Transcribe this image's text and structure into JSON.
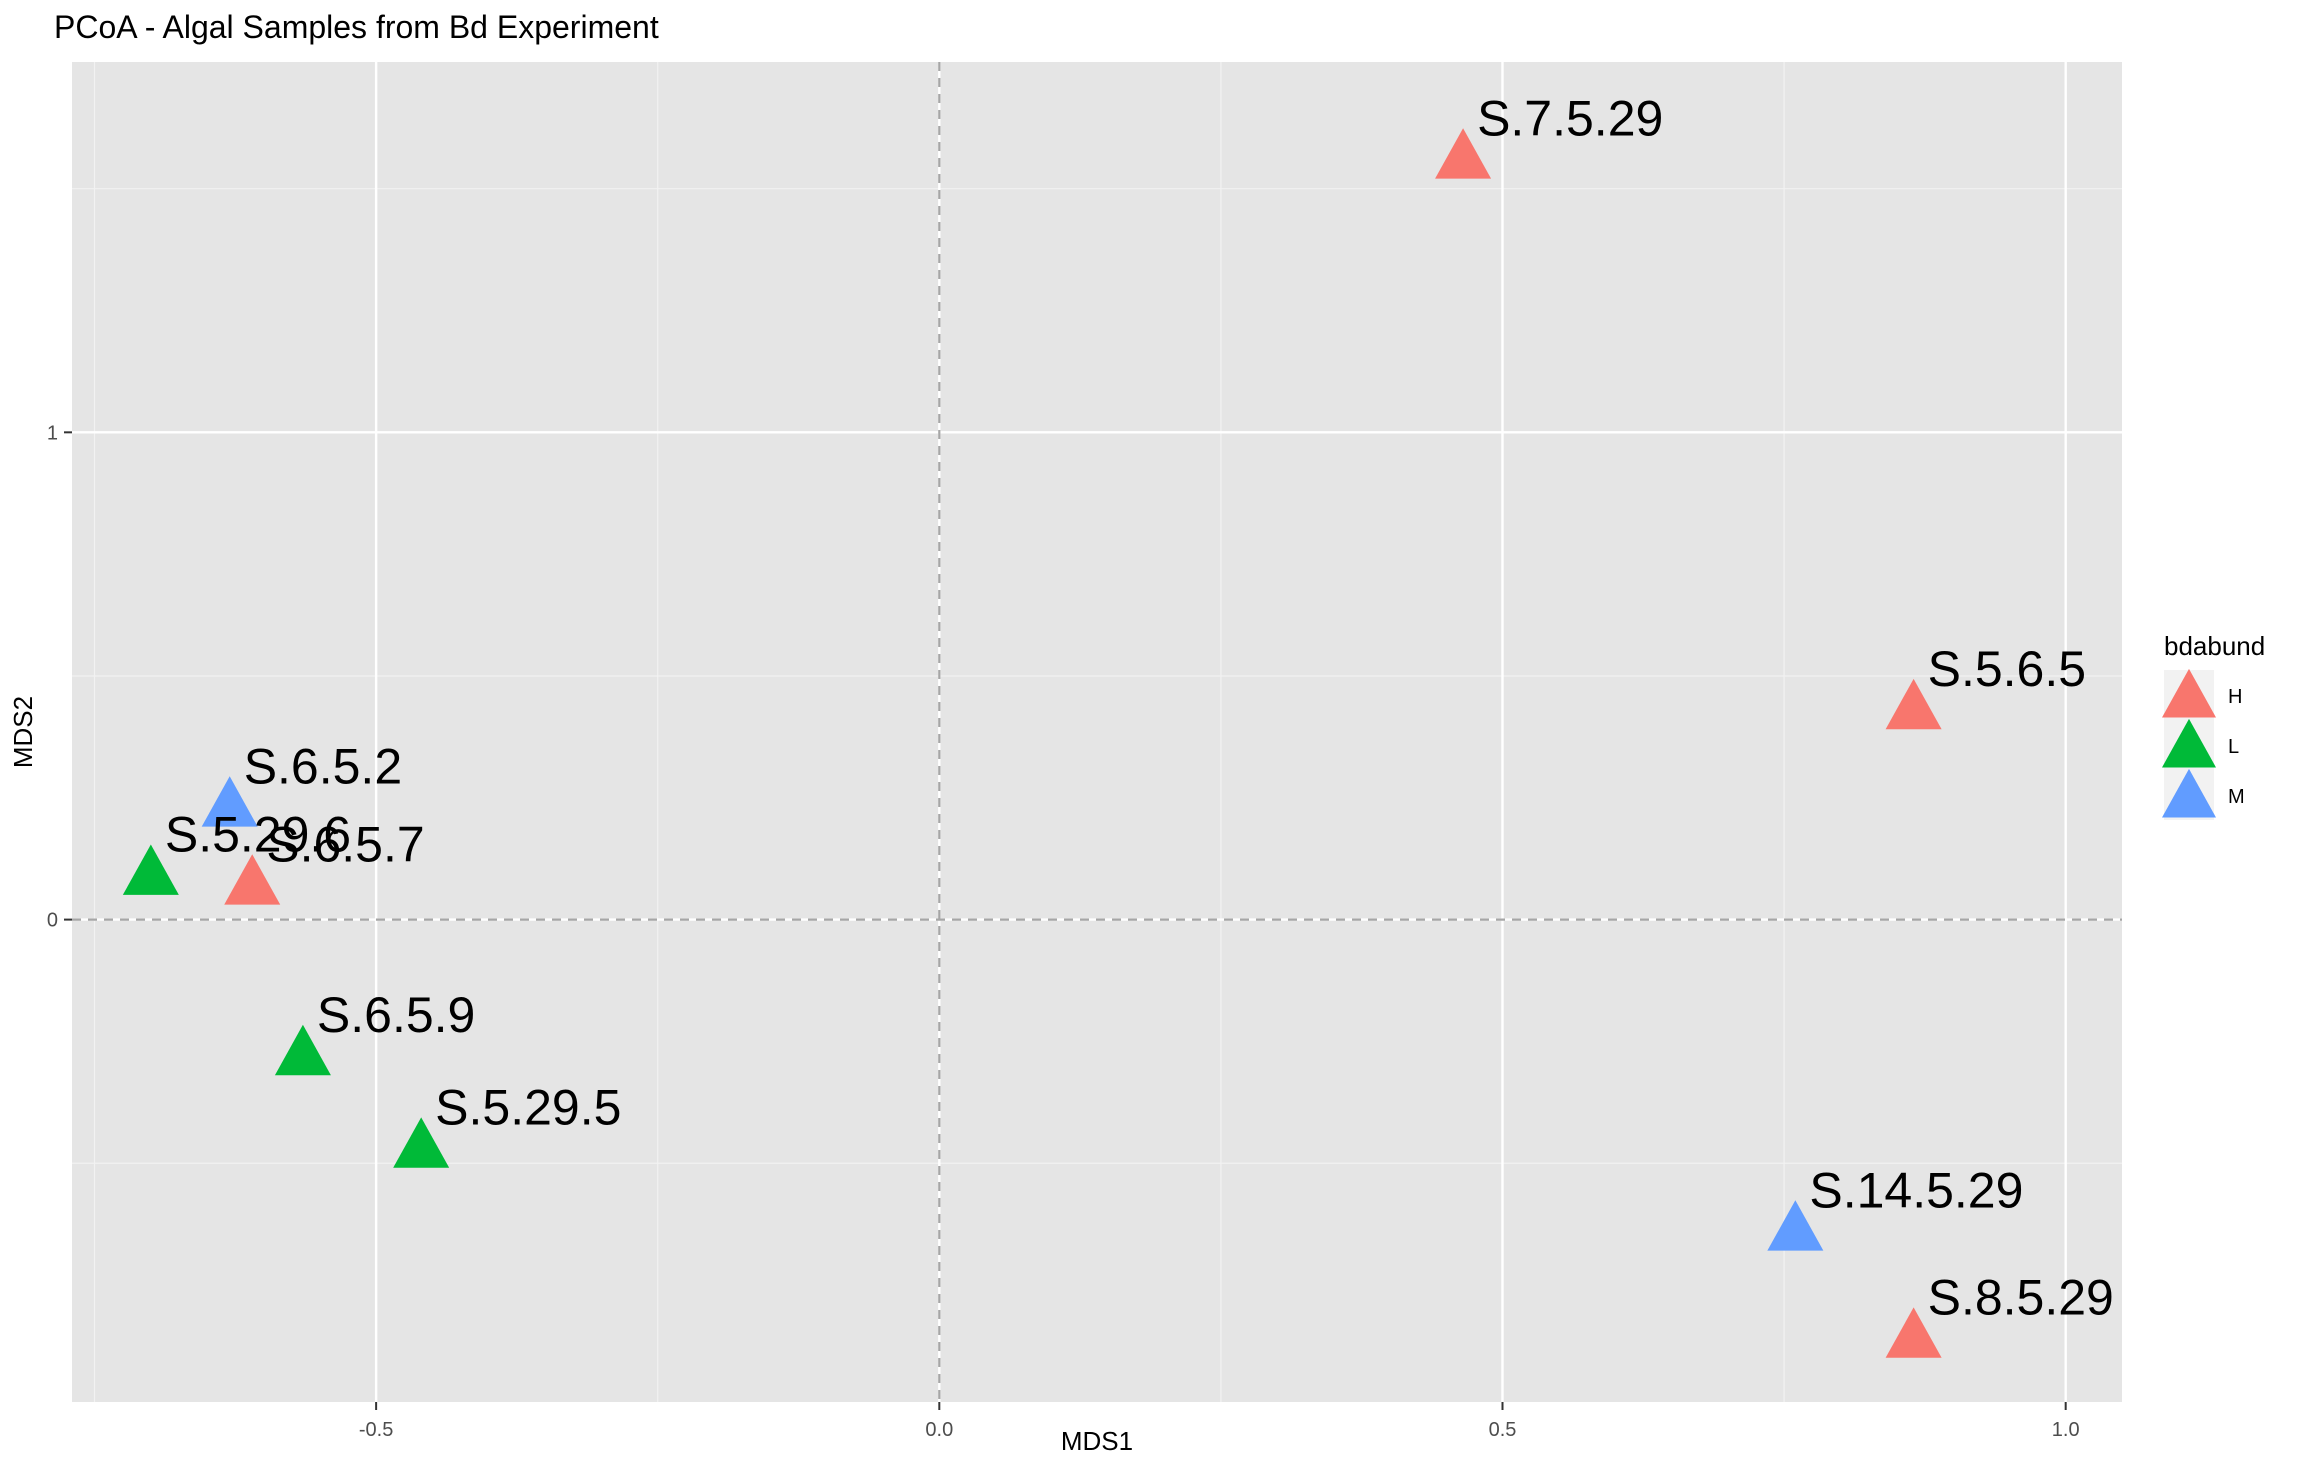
{
  "chart_data": {
    "type": "scatter",
    "title": "PCoA - Algal Samples from Bd Experiment",
    "xlabel": "MDS1",
    "ylabel": "MDS2",
    "xlim": [
      -0.77,
      1.05
    ],
    "ylim": [
      -0.99,
      1.76
    ],
    "x_ticks": [
      -0.5,
      0.0,
      0.5,
      1.0
    ],
    "x_tick_labels": [
      "-0.5",
      "0.0",
      "0.5",
      "1.0"
    ],
    "y_ticks": [
      0,
      1
    ],
    "y_tick_labels": [
      "0",
      "1"
    ],
    "grid": true,
    "reference_lines": {
      "x": 0,
      "y": 0,
      "style": "dashed"
    },
    "legend": {
      "title": "bdabund",
      "position": "right",
      "entries": [
        {
          "label": "H",
          "color": "#F8766D"
        },
        {
          "label": "L",
          "color": "#00BA38"
        },
        {
          "label": "M",
          "color": "#619CFF"
        }
      ]
    },
    "points": [
      {
        "label": "S.7.5.29",
        "x": 0.465,
        "y": 1.56,
        "group": "H"
      },
      {
        "label": "S.5.6.5",
        "x": 0.865,
        "y": 0.43,
        "group": "H"
      },
      {
        "label": "S.6.5.2",
        "x": -0.63,
        "y": 0.23,
        "group": "M"
      },
      {
        "label": "S.5.29.6",
        "x": -0.7,
        "y": 0.09,
        "group": "L"
      },
      {
        "label": "S.6.5.7",
        "x": -0.61,
        "y": 0.07,
        "group": "H"
      },
      {
        "label": "S.6.5.9",
        "x": -0.565,
        "y": -0.28,
        "group": "L"
      },
      {
        "label": "S.5.29.5",
        "x": -0.46,
        "y": -0.47,
        "group": "L"
      },
      {
        "label": "S.14.5.29",
        "x": 0.76,
        "y": -0.64,
        "group": "M"
      },
      {
        "label": "S.8.5.29",
        "x": 0.865,
        "y": -0.86,
        "group": "H"
      }
    ]
  }
}
